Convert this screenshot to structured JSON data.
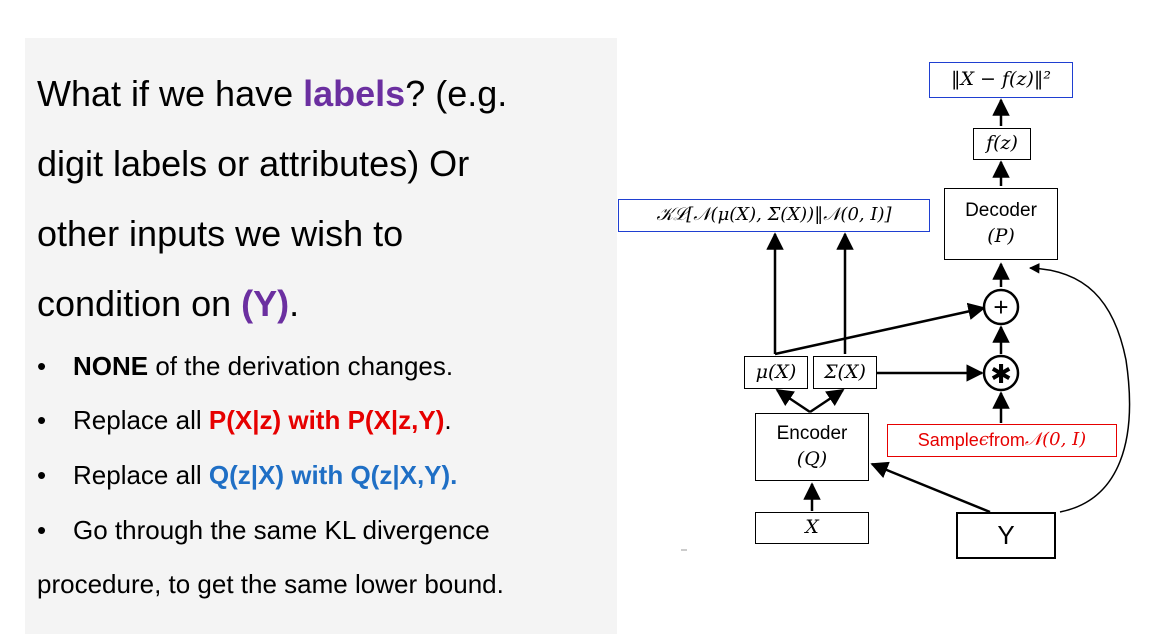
{
  "text": {
    "line1_a": "What if we have ",
    "line1_b": "labels",
    "line1_c": "? (e.g.",
    "line2": "digit labels or attributes) Or",
    "line3": "other inputs we wish to",
    "line4_a": "condition on ",
    "line4_b": "(Y)",
    "line4_c": "."
  },
  "bullets": {
    "b1_bold": "NONE",
    "b1_rest": " of the derivation changes.",
    "b2_a": "Replace all ",
    "b2_b": "P(X|z) with P(X|z,Y)",
    "b2_c": ".",
    "b3_a": "Replace all ",
    "b3_b": "Q(z|X) with Q(z|X,Y).",
    "b4": "Go through the same KL divergence",
    "b4_cont": "procedure, to get the same lower bound.",
    "marker": "•"
  },
  "diagram": {
    "loss_top": "‖X − f(z)‖²",
    "fz": "f(z)",
    "decoder_label": "Decoder",
    "decoder_sym": "(P)",
    "kl_label": "𝒦ℒ[𝒩(μ(X), Σ(X))‖𝒩(0, I)]",
    "plus": "+",
    "times": "✱",
    "mu": "μ(X)",
    "sigma": "Σ(X)",
    "encoder_label": "Encoder",
    "encoder_sym": "(Q)",
    "sample_a": "Sample ",
    "sample_b": "ϵ",
    "sample_c": " from ",
    "sample_d": "𝒩(0, I)",
    "x_input": "X",
    "y_input": "Y",
    "colors": {
      "blue_border": "#1f3fd1",
      "red": "#e60000"
    }
  }
}
